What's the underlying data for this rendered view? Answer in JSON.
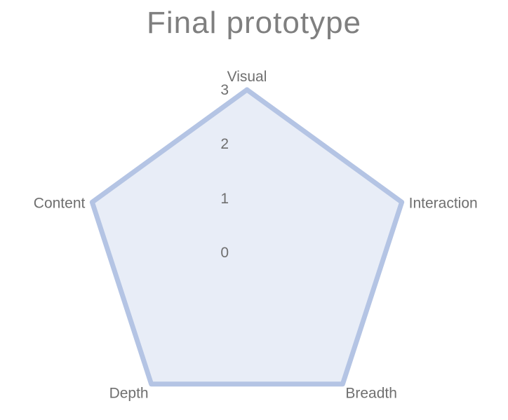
{
  "chart_data": {
    "type": "radar",
    "title": "Final prototype",
    "categories": [
      "Visual",
      "Interaction",
      "Breadth",
      "Depth",
      "Content"
    ],
    "series": [
      {
        "values": [
          3,
          3,
          3,
          3,
          3
        ]
      }
    ],
    "rlim": [
      0,
      3
    ],
    "ticks": [
      "0",
      "1",
      "2",
      "3"
    ],
    "colors": {
      "series_line": "#b4c4e4",
      "series_fill": "#e8edf7",
      "grid": "#d0d0d0",
      "text": "#6f6f6f",
      "title": "#7f7f7f"
    },
    "grid": true
  }
}
